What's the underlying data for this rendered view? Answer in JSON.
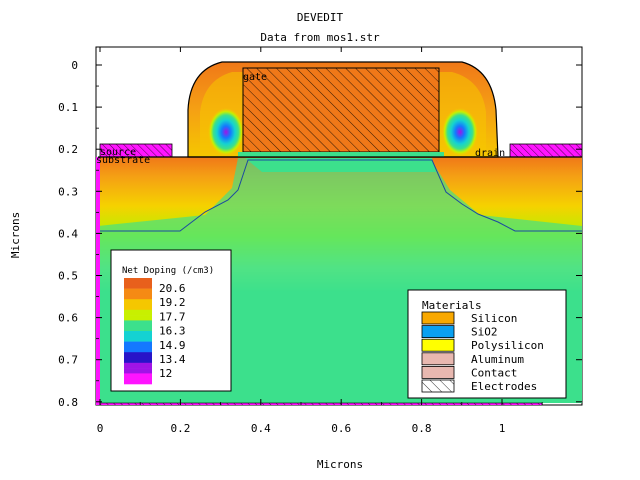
{
  "chart_data": {
    "type": "heatmap",
    "title": "DEVEDIT",
    "subtitle": "Data from mos1.str",
    "xlabel": "Microns",
    "ylabel": "Microns",
    "xlim": [
      0,
      1.2
    ],
    "ylim": [
      0.8,
      0
    ],
    "x_ticks": [
      "0",
      "0.2",
      "0.4",
      "0.6",
      "0.8",
      "1"
    ],
    "y_ticks": [
      "0",
      "0.1",
      "0.2",
      "0.3",
      "0.4",
      "0.5",
      "0.6",
      "0.7",
      "0.8"
    ],
    "grid": false,
    "legend_doping": {
      "title": "Net Doping (/cm3)",
      "placement": "bottom-left",
      "entries": [
        "20.6",
        "19.2",
        "17.7",
        "16.3",
        "14.9",
        "13.4",
        "12"
      ],
      "swatch_colors": [
        "#e8601c",
        "#f58a14",
        "#f5c700",
        "#c8f000",
        "#3ce08c",
        "#14d2d2",
        "#1478ff",
        "#2814c8",
        "#a014e6",
        "#ff14ff"
      ]
    },
    "legend_materials": {
      "title": "Materials",
      "placement": "bottom-right",
      "entries": [
        {
          "label": "Silicon",
          "color": "#f8a800"
        },
        {
          "label": "SiO2",
          "color": "#0aa0f0"
        },
        {
          "label": "Polysilicon",
          "color": "#ffff00"
        },
        {
          "label": "Aluminum",
          "color": "#e8b8b0"
        },
        {
          "label": "Contact",
          "color": "#e8b8b0"
        },
        {
          "label": "Electrodes",
          "color": "#ffffff"
        }
      ]
    },
    "region_labels": {
      "gate": "gate",
      "source": "source",
      "substrate": "substrate",
      "drain": "drain"
    }
  }
}
